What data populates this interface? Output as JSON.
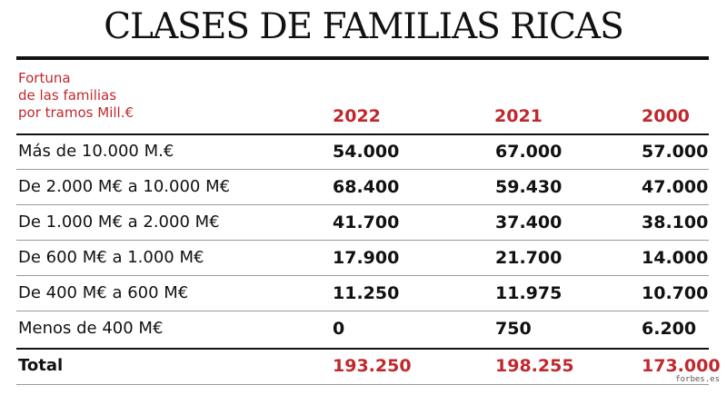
{
  "title": "CLASES DE FAMILIAS RICAS",
  "header": {
    "label_lines": [
      "Fortuna",
      "de las familias",
      "por tramos Mill.€"
    ],
    "years": [
      "2022",
      "2021",
      "2000"
    ]
  },
  "rows": [
    {
      "label": "Más de 10.000 M.€",
      "values": [
        "54.000",
        "67.000",
        "57.000"
      ]
    },
    {
      "label": "De 2.000 M€ a 10.000 M€",
      "values": [
        "68.400",
        "59.430",
        "47.000"
      ]
    },
    {
      "label": "De 1.000 M€ a 2.000 M€",
      "values": [
        "41.700",
        "37.400",
        "38.100"
      ]
    },
    {
      "label": "De 600 M€ a 1.000 M€",
      "values": [
        "17.900",
        "21.700",
        "14.000"
      ]
    },
    {
      "label": "De 400 M€ a 600 M€",
      "values": [
        "11.250",
        "11.975",
        "10.700"
      ]
    },
    {
      "label": "Menos de 400 M€",
      "values": [
        "0",
        "750",
        "6.200"
      ]
    }
  ],
  "total": {
    "label": "Total",
    "values": [
      "193.250",
      "198.255",
      "173.000"
    ]
  },
  "source": "forbes.es",
  "colors": {
    "accent": "#c0282d",
    "text": "#111111"
  }
}
